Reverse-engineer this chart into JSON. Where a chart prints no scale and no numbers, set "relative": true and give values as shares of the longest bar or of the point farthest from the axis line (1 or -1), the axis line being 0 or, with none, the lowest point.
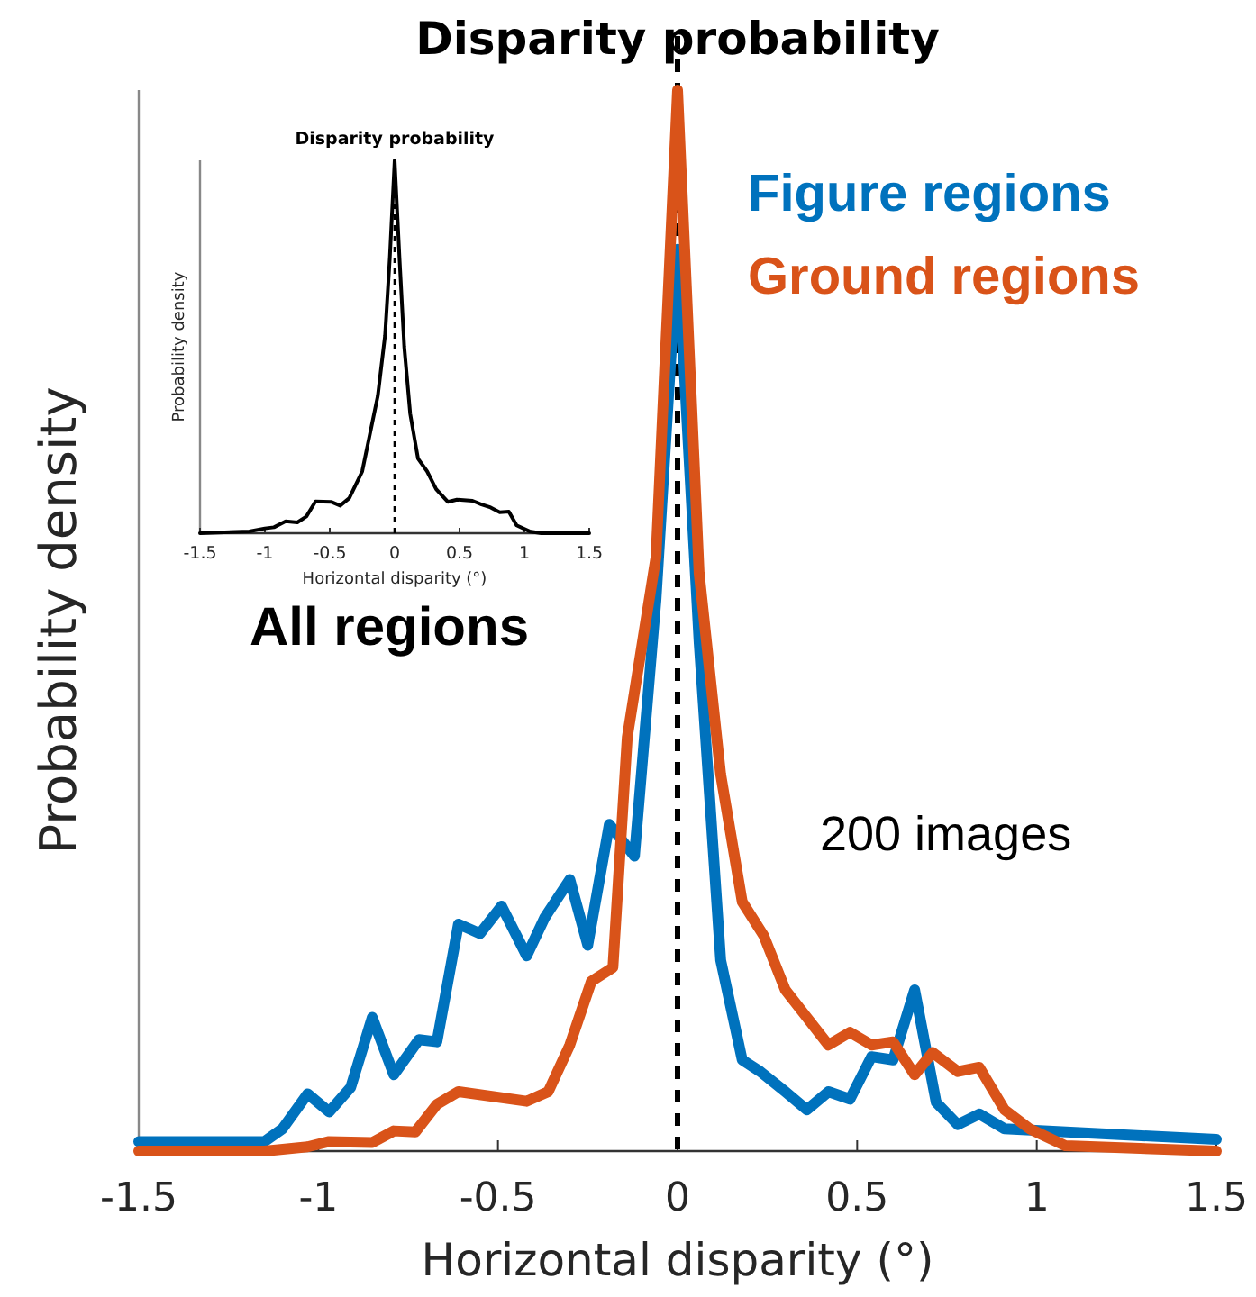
{
  "chart_data": [
    {
      "type": "line",
      "title": "Disparity probability",
      "xlabel": "Horizontal disparity (°)",
      "ylabel": "Probability density",
      "relative": true,
      "xlim": [
        -1.5,
        1.5
      ],
      "xticks": [
        -1.5,
        -1,
        -0.5,
        0,
        0.5,
        1,
        1.5
      ],
      "legend": "top right",
      "line_style": "solid",
      "marker": "none",
      "ref_lines": [
        {
          "axis": "x",
          "value": 0,
          "line_style": "dashed",
          "color": "#000000"
        }
      ],
      "annotations": [
        "200 images"
      ],
      "series": [
        {
          "name": "Figure regions",
          "color": "#0072bd",
          "x": [
            -1.5,
            -1.15,
            -1.1,
            -1.03,
            -0.97,
            -0.91,
            -0.85,
            -0.79,
            -0.72,
            -0.67,
            -0.61,
            -0.55,
            -0.49,
            -0.42,
            -0.37,
            -0.3,
            -0.25,
            -0.19,
            -0.12,
            -0.06,
            0,
            0.06,
            0.12,
            0.18,
            0.23,
            0.3,
            0.36,
            0.42,
            0.48,
            0.54,
            0.6,
            0.66,
            0.72,
            0.78,
            0.84,
            0.91,
            1.5
          ],
          "values": [
            0.009,
            0.009,
            0.021,
            0.054,
            0.037,
            0.06,
            0.126,
            0.072,
            0.105,
            0.103,
            0.214,
            0.205,
            0.231,
            0.184,
            0.22,
            0.256,
            0.194,
            0.308,
            0.278,
            0.52,
            0.85,
            0.48,
            0.18,
            0.086,
            0.075,
            0.056,
            0.039,
            0.056,
            0.049,
            0.089,
            0.086,
            0.152,
            0.046,
            0.025,
            0.035,
            0.021,
            0.011
          ]
        },
        {
          "name": "Ground regions",
          "color": "#d95319",
          "x": [
            -1.5,
            -1.15,
            -1.03,
            -0.97,
            -0.85,
            -0.79,
            -0.73,
            -0.67,
            -0.61,
            -0.42,
            -0.36,
            -0.3,
            -0.24,
            -0.18,
            -0.14,
            -0.06,
            0,
            0.06,
            0.12,
            0.18,
            0.24,
            0.3,
            0.36,
            0.42,
            0.48,
            0.54,
            0.6,
            0.66,
            0.71,
            0.78,
            0.84,
            0.91,
            0.98,
            1.08,
            1.5
          ],
          "values": [
            0,
            0,
            0.004,
            0.009,
            0.008,
            0.019,
            0.018,
            0.044,
            0.056,
            0.047,
            0.056,
            0.1,
            0.16,
            0.173,
            0.39,
            0.56,
            1,
            0.545,
            0.355,
            0.235,
            0.203,
            0.152,
            0.126,
            0.1,
            0.112,
            0.1,
            0.103,
            0.072,
            0.093,
            0.075,
            0.079,
            0.039,
            0.021,
            0.005,
            0
          ]
        }
      ]
    },
    {
      "type": "line",
      "title": "Disparity probability",
      "xlabel": "Horizontal disparity (°)",
      "ylabel": "Probability density",
      "relative": true,
      "xlim": [
        -1.5,
        1.5
      ],
      "xticks": [
        -1.5,
        -1,
        -0.5,
        0,
        0.5,
        1,
        1.5
      ],
      "line_style": "solid",
      "marker": "none",
      "ref_lines": [
        {
          "axis": "x",
          "value": 0,
          "line_style": "dashed",
          "color": "#000000"
        }
      ],
      "annotations": [
        "All regions"
      ],
      "series": [
        {
          "color": "#000000",
          "x": [
            -1.5,
            -1.12,
            -1,
            -0.93,
            -0.84,
            -0.75,
            -0.68,
            -0.61,
            -0.49,
            -0.42,
            -0.35,
            -0.25,
            -0.13,
            -0.074,
            -0.037,
            0,
            0.037,
            0.074,
            0.12,
            0.18,
            0.25,
            0.32,
            0.41,
            0.48,
            0.6,
            0.67,
            0.74,
            0.81,
            0.88,
            0.94,
            1.04,
            1.13,
            1.5
          ],
          "values": [
            0,
            0.005,
            0.013,
            0.016,
            0.032,
            0.029,
            0.045,
            0.085,
            0.084,
            0.074,
            0.094,
            0.166,
            0.368,
            0.53,
            0.74,
            1,
            0.74,
            0.5,
            0.32,
            0.2,
            0.166,
            0.118,
            0.084,
            0.09,
            0.087,
            0.077,
            0.069,
            0.056,
            0.058,
            0.021,
            0.005,
            0,
            0
          ]
        }
      ]
    }
  ]
}
